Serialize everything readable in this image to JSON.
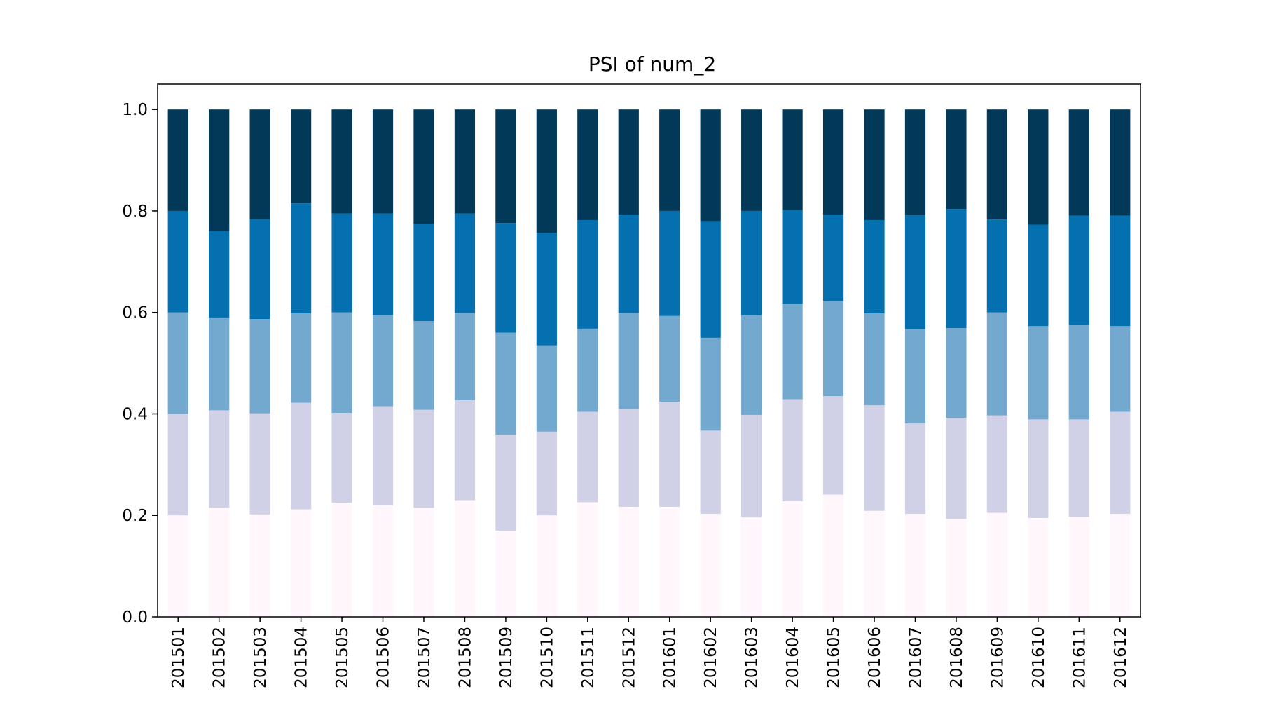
{
  "chart_data": {
    "type": "bar",
    "stacked": true,
    "title": "PSI of num_2",
    "xlabel": "",
    "ylabel": "",
    "ylim": [
      0,
      1.05
    ],
    "yticks": [
      "0.0",
      "0.2",
      "0.4",
      "0.6",
      "0.8",
      "1.0"
    ],
    "categories": [
      "201501",
      "201502",
      "201503",
      "201504",
      "201505",
      "201506",
      "201507",
      "201508",
      "201509",
      "201510",
      "201511",
      "201512",
      "201601",
      "201602",
      "201603",
      "201604",
      "201605",
      "201606",
      "201607",
      "201608",
      "201609",
      "201610",
      "201611",
      "201612"
    ],
    "colors": [
      "#fff7fb",
      "#d0d1e6",
      "#74a9cf",
      "#0570b0",
      "#023858"
    ],
    "series": [
      {
        "values": [
          0.2,
          0.215,
          0.202,
          0.212,
          0.225,
          0.22,
          0.215,
          0.23,
          0.17,
          0.2,
          0.226,
          0.217,
          0.217,
          0.203,
          0.196,
          0.228,
          0.241,
          0.209,
          0.203,
          0.193,
          0.205,
          0.195,
          0.197,
          0.203
        ]
      },
      {
        "values": [
          0.2,
          0.192,
          0.199,
          0.21,
          0.177,
          0.195,
          0.193,
          0.197,
          0.189,
          0.165,
          0.178,
          0.193,
          0.207,
          0.164,
          0.202,
          0.201,
          0.194,
          0.208,
          0.178,
          0.199,
          0.192,
          0.194,
          0.192,
          0.201
        ]
      },
      {
        "values": [
          0.2,
          0.183,
          0.186,
          0.176,
          0.198,
          0.18,
          0.175,
          0.172,
          0.201,
          0.17,
          0.164,
          0.189,
          0.169,
          0.183,
          0.196,
          0.188,
          0.188,
          0.181,
          0.186,
          0.177,
          0.203,
          0.184,
          0.186,
          0.169
        ]
      },
      {
        "values": [
          0.2,
          0.17,
          0.197,
          0.217,
          0.195,
          0.2,
          0.192,
          0.196,
          0.216,
          0.222,
          0.214,
          0.194,
          0.207,
          0.23,
          0.206,
          0.185,
          0.17,
          0.184,
          0.225,
          0.235,
          0.183,
          0.2,
          0.216,
          0.218
        ]
      },
      {
        "values": [
          0.2,
          0.24,
          0.216,
          0.185,
          0.205,
          0.205,
          0.225,
          0.205,
          0.224,
          0.243,
          0.218,
          0.207,
          0.2,
          0.22,
          0.2,
          0.198,
          0.207,
          0.218,
          0.208,
          0.196,
          0.217,
          0.227,
          0.209,
          0.209
        ]
      }
    ]
  }
}
